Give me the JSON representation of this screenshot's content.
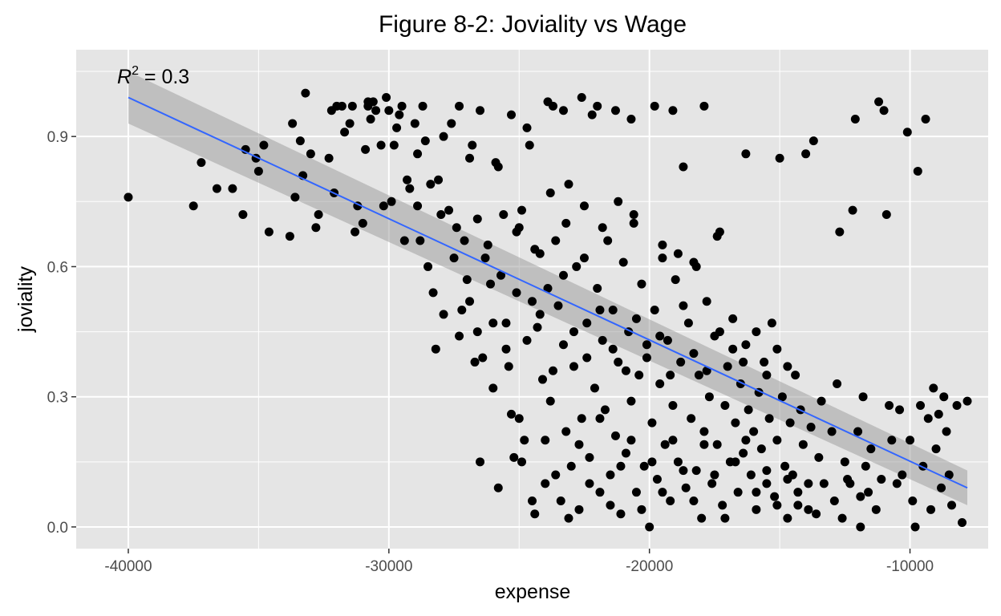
{
  "chart_data": {
    "type": "scatter",
    "title": "Figure 8-2: Joviality vs Wage",
    "xlabel": "expense",
    "ylabel": "joviality",
    "xlim": [
      -42000,
      -7000
    ],
    "ylim": [
      -0.05,
      1.1
    ],
    "x_ticks": [
      -40000,
      -30000,
      -20000,
      -10000
    ],
    "x_tick_labels": [
      "-40000",
      "-30000",
      "-20000",
      "-10000"
    ],
    "y_ticks": [
      0.0,
      0.3,
      0.6,
      0.9
    ],
    "y_tick_labels": [
      "0.0",
      "0.3",
      "0.6",
      "0.9"
    ],
    "grid": true,
    "annotation": {
      "prefix": "R",
      "superscript": "2",
      "text": " = 0.3"
    },
    "trend_line": {
      "x": [
        -40000,
        -7800
      ],
      "y": [
        0.99,
        0.09
      ]
    },
    "confidence_band": {
      "x": [
        -40000,
        -7800
      ],
      "upper": [
        1.05,
        0.13
      ],
      "lower": [
        0.93,
        0.05
      ]
    },
    "colors": {
      "panel": "#e5e5e5",
      "grid": "#ffffff",
      "points": "#000000",
      "line": "#3366ff",
      "band": "#999999"
    },
    "points": [
      [
        -40000,
        0.76
      ],
      [
        -37500,
        0.74
      ],
      [
        -37200,
        0.84
      ],
      [
        -36600,
        0.78
      ],
      [
        -36000,
        0.78
      ],
      [
        -35600,
        0.72
      ],
      [
        -35500,
        0.87
      ],
      [
        -35100,
        0.85
      ],
      [
        -35000,
        0.82
      ],
      [
        -34800,
        0.88
      ],
      [
        -34600,
        0.68
      ],
      [
        -33800,
        0.67
      ],
      [
        -33700,
        0.93
      ],
      [
        -33600,
        0.76
      ],
      [
        -33400,
        0.89
      ],
      [
        -33300,
        0.81
      ],
      [
        -33200,
        1.0
      ],
      [
        -33000,
        0.86
      ],
      [
        -32800,
        0.69
      ],
      [
        -32700,
        0.72
      ],
      [
        -32300,
        0.85
      ],
      [
        -32200,
        0.96
      ],
      [
        -32100,
        0.77
      ],
      [
        -32000,
        0.97
      ],
      [
        -31800,
        0.97
      ],
      [
        -31700,
        0.91
      ],
      [
        -31500,
        0.93
      ],
      [
        -31400,
        0.97
      ],
      [
        -31300,
        0.68
      ],
      [
        -31200,
        0.74
      ],
      [
        -31000,
        0.7
      ],
      [
        -30900,
        0.87
      ],
      [
        -30800,
        0.97
      ],
      [
        -30700,
        0.94
      ],
      [
        -30600,
        0.98
      ],
      [
        -30500,
        0.96
      ],
      [
        -30300,
        0.88
      ],
      [
        -30200,
        0.74
      ],
      [
        -30100,
        0.99
      ],
      [
        -30000,
        0.96
      ],
      [
        -29900,
        0.75
      ],
      [
        -29800,
        0.88
      ],
      [
        -29700,
        0.92
      ],
      [
        -29500,
        0.97
      ],
      [
        -29400,
        0.66
      ],
      [
        -29200,
        0.78
      ],
      [
        -29000,
        0.93
      ],
      [
        -28900,
        0.86
      ],
      [
        -28800,
        0.66
      ],
      [
        -28700,
        0.97
      ],
      [
        -28500,
        0.6
      ],
      [
        -28400,
        0.79
      ],
      [
        -28300,
        0.54
      ],
      [
        -28200,
        0.41
      ],
      [
        -28100,
        0.8
      ],
      [
        -27900,
        0.9
      ],
      [
        -27700,
        0.73
      ],
      [
        -27500,
        0.62
      ],
      [
        -27300,
        0.97
      ],
      [
        -27200,
        0.5
      ],
      [
        -27000,
        0.57
      ],
      [
        -26900,
        0.85
      ],
      [
        -26700,
        0.38
      ],
      [
        -26600,
        0.45
      ],
      [
        -26500,
        0.96
      ],
      [
        -26300,
        0.62
      ],
      [
        -26100,
        0.56
      ],
      [
        -26000,
        0.32
      ],
      [
        -25800,
        0.83
      ],
      [
        -25700,
        0.58
      ],
      [
        -25500,
        0.47
      ],
      [
        -25400,
        0.37
      ],
      [
        -25200,
        0.16
      ],
      [
        -25100,
        0.68
      ],
      [
        -25000,
        0.25
      ],
      [
        -24900,
        0.73
      ],
      [
        -24800,
        0.2
      ],
      [
        -24600,
        0.88
      ],
      [
        -24500,
        0.52
      ],
      [
        -24400,
        0.03
      ],
      [
        -24300,
        0.46
      ],
      [
        -24200,
        0.63
      ],
      [
        -24100,
        0.34
      ],
      [
        -24000,
        0.1
      ],
      [
        -23900,
        0.55
      ],
      [
        -23800,
        0.29
      ],
      [
        -23700,
        0.97
      ],
      [
        -23600,
        0.66
      ],
      [
        -23500,
        0.51
      ],
      [
        -23400,
        0.06
      ],
      [
        -23300,
        0.42
      ],
      [
        -23200,
        0.22
      ],
      [
        -23100,
        0.79
      ],
      [
        -23000,
        0.14
      ],
      [
        -22900,
        0.37
      ],
      [
        -22800,
        0.6
      ],
      [
        -22700,
        0.04
      ],
      [
        -22600,
        0.25
      ],
      [
        -22500,
        0.74
      ],
      [
        -22400,
        0.47
      ],
      [
        -22300,
        0.16
      ],
      [
        -22200,
        0.95
      ],
      [
        -22100,
        0.32
      ],
      [
        -22000,
        0.55
      ],
      [
        -21900,
        0.08
      ],
      [
        -21800,
        0.43
      ],
      [
        -21700,
        0.27
      ],
      [
        -21600,
        0.66
      ],
      [
        -21500,
        0.12
      ],
      [
        -21400,
        0.5
      ],
      [
        -21300,
        0.21
      ],
      [
        -21200,
        0.38
      ],
      [
        -21100,
        0.03
      ],
      [
        -21000,
        0.61
      ],
      [
        -20900,
        0.17
      ],
      [
        -20800,
        0.45
      ],
      [
        -20700,
        0.29
      ],
      [
        -20600,
        0.72
      ],
      [
        -20500,
        0.08
      ],
      [
        -20400,
        0.35
      ],
      [
        -20300,
        0.56
      ],
      [
        -20200,
        0.14
      ],
      [
        -20100,
        0.42
      ],
      [
        -20000,
        0.0
      ],
      [
        -19900,
        0.24
      ],
      [
        -19800,
        0.5
      ],
      [
        -19700,
        0.11
      ],
      [
        -19600,
        0.33
      ],
      [
        -19500,
        0.62
      ],
      [
        -19400,
        0.19
      ],
      [
        -19300,
        0.43
      ],
      [
        -19200,
        0.06
      ],
      [
        -19100,
        0.28
      ],
      [
        -19000,
        0.57
      ],
      [
        -18900,
        0.15
      ],
      [
        -18800,
        0.38
      ],
      [
        -18700,
        0.83
      ],
      [
        -18600,
        0.09
      ],
      [
        -18500,
        0.47
      ],
      [
        -18400,
        0.25
      ],
      [
        -18300,
        0.61
      ],
      [
        -18200,
        0.13
      ],
      [
        -18100,
        0.35
      ],
      [
        -18000,
        0.02
      ],
      [
        -17900,
        0.22
      ],
      [
        -17800,
        0.52
      ],
      [
        -17700,
        0.3
      ],
      [
        -17600,
        0.1
      ],
      [
        -17500,
        0.44
      ],
      [
        -17400,
        0.19
      ],
      [
        -17300,
        0.68
      ],
      [
        -17200,
        0.05
      ],
      [
        -17100,
        0.28
      ],
      [
        -17000,
        0.37
      ],
      [
        -16900,
        0.15
      ],
      [
        -16800,
        0.48
      ],
      [
        -16700,
        0.24
      ],
      [
        -16600,
        0.08
      ],
      [
        -16500,
        0.33
      ],
      [
        -16400,
        0.17
      ],
      [
        -16300,
        0.42
      ],
      [
        -16200,
        0.27
      ],
      [
        -16100,
        0.12
      ],
      [
        -16000,
        0.22
      ],
      [
        -15900,
        0.04
      ],
      [
        -15800,
        0.31
      ],
      [
        -15700,
        0.18
      ],
      [
        -15600,
        0.38
      ],
      [
        -15500,
        0.1
      ],
      [
        -15400,
        0.25
      ],
      [
        -15300,
        0.47
      ],
      [
        -15200,
        0.07
      ],
      [
        -15100,
        0.2
      ],
      [
        -15000,
        0.85
      ],
      [
        -14900,
        0.3
      ],
      [
        -14800,
        0.14
      ],
      [
        -14700,
        0.02
      ],
      [
        -14600,
        0.24
      ],
      [
        -14500,
        0.12
      ],
      [
        -14400,
        0.35
      ],
      [
        -14300,
        0.05
      ],
      [
        -14200,
        0.27
      ],
      [
        -14100,
        0.19
      ],
      [
        -14000,
        0.86
      ],
      [
        -13900,
        0.1
      ],
      [
        -13800,
        0.23
      ],
      [
        -13700,
        0.89
      ],
      [
        -13600,
        0.03
      ],
      [
        -13500,
        0.16
      ],
      [
        -13400,
        0.29
      ],
      [
        -13000,
        0.22
      ],
      [
        -12800,
        0.33
      ],
      [
        -12700,
        0.68
      ],
      [
        -12600,
        0.02
      ],
      [
        -12500,
        0.15
      ],
      [
        -12300,
        0.1
      ],
      [
        -12200,
        0.73
      ],
      [
        -12100,
        0.94
      ],
      [
        -12000,
        0.22
      ],
      [
        -11900,
        0.0
      ],
      [
        -11800,
        0.3
      ],
      [
        -11700,
        0.14
      ],
      [
        -11600,
        0.08
      ],
      [
        -11500,
        0.18
      ],
      [
        -11300,
        0.04
      ],
      [
        -11200,
        0.98
      ],
      [
        -11100,
        0.11
      ],
      [
        -11000,
        0.96
      ],
      [
        -10900,
        0.72
      ],
      [
        -10800,
        0.28
      ],
      [
        -10700,
        0.2
      ],
      [
        -10500,
        0.1
      ],
      [
        -10400,
        0.27
      ],
      [
        -10300,
        0.12
      ],
      [
        -10100,
        0.91
      ],
      [
        -10000,
        0.2
      ],
      [
        -9900,
        0.06
      ],
      [
        -9800,
        0.0
      ],
      [
        -9700,
        0.82
      ],
      [
        -9600,
        0.28
      ],
      [
        -9500,
        0.14
      ],
      [
        -9400,
        0.94
      ],
      [
        -9300,
        0.25
      ],
      [
        -9200,
        0.04
      ],
      [
        -9100,
        0.32
      ],
      [
        -9000,
        0.18
      ],
      [
        -8900,
        0.26
      ],
      [
        -8800,
        0.09
      ],
      [
        -8700,
        0.3
      ],
      [
        -8600,
        0.22
      ],
      [
        -8500,
        0.12
      ],
      [
        -8400,
        0.05
      ],
      [
        -8200,
        0.28
      ],
      [
        -8000,
        0.01
      ],
      [
        -7800,
        0.29
      ],
      [
        -30800,
        0.98
      ],
      [
        -29600,
        0.95
      ],
      [
        -28600,
        0.89
      ],
      [
        -27600,
        0.93
      ],
      [
        -26800,
        0.88
      ],
      [
        -25900,
        0.84
      ],
      [
        -25300,
        0.95
      ],
      [
        -24700,
        0.92
      ],
      [
        -23900,
        0.98
      ],
      [
        -23300,
        0.96
      ],
      [
        -22600,
        0.99
      ],
      [
        -22000,
        0.97
      ],
      [
        -21300,
        0.96
      ],
      [
        -20700,
        0.94
      ],
      [
        -19800,
        0.97
      ],
      [
        -19100,
        0.96
      ],
      [
        -17900,
        0.97
      ],
      [
        -16300,
        0.86
      ],
      [
        -29300,
        0.8
      ],
      [
        -28900,
        0.74
      ],
      [
        -28000,
        0.72
      ],
      [
        -27400,
        0.69
      ],
      [
        -27100,
        0.66
      ],
      [
        -26600,
        0.71
      ],
      [
        -26200,
        0.65
      ],
      [
        -25600,
        0.72
      ],
      [
        -25000,
        0.69
      ],
      [
        -24400,
        0.64
      ],
      [
        -23800,
        0.77
      ],
      [
        -23200,
        0.7
      ],
      [
        -22500,
        0.62
      ],
      [
        -21800,
        0.69
      ],
      [
        -21200,
        0.75
      ],
      [
        -20600,
        0.7
      ],
      [
        -19500,
        0.65
      ],
      [
        -18900,
        0.63
      ],
      [
        -18200,
        0.6
      ],
      [
        -17400,
        0.67
      ],
      [
        -27900,
        0.49
      ],
      [
        -27300,
        0.44
      ],
      [
        -26900,
        0.52
      ],
      [
        -26400,
        0.39
      ],
      [
        -26000,
        0.47
      ],
      [
        -25500,
        0.41
      ],
      [
        -25100,
        0.54
      ],
      [
        -24700,
        0.43
      ],
      [
        -24200,
        0.49
      ],
      [
        -23700,
        0.36
      ],
      [
        -23300,
        0.58
      ],
      [
        -22900,
        0.45
      ],
      [
        -22400,
        0.39
      ],
      [
        -21900,
        0.5
      ],
      [
        -21400,
        0.41
      ],
      [
        -20900,
        0.36
      ],
      [
        -20500,
        0.48
      ],
      [
        -20100,
        0.39
      ],
      [
        -19600,
        0.44
      ],
      [
        -19200,
        0.35
      ],
      [
        -18700,
        0.51
      ],
      [
        -18300,
        0.4
      ],
      [
        -17800,
        0.36
      ],
      [
        -17300,
        0.45
      ],
      [
        -16800,
        0.41
      ],
      [
        -16400,
        0.38
      ],
      [
        -15900,
        0.45
      ],
      [
        -15500,
        0.35
      ],
      [
        -15100,
        0.41
      ],
      [
        -14700,
        0.37
      ],
      [
        -26500,
        0.15
      ],
      [
        -25800,
        0.09
      ],
      [
        -25300,
        0.26
      ],
      [
        -24900,
        0.15
      ],
      [
        -24500,
        0.06
      ],
      [
        -24000,
        0.2
      ],
      [
        -23600,
        0.12
      ],
      [
        -23100,
        0.02
      ],
      [
        -22700,
        0.19
      ],
      [
        -22300,
        0.1
      ],
      [
        -21900,
        0.25
      ],
      [
        -21500,
        0.05
      ],
      [
        -21100,
        0.14
      ],
      [
        -20700,
        0.2
      ],
      [
        -20300,
        0.04
      ],
      [
        -19900,
        0.15
      ],
      [
        -19500,
        0.08
      ],
      [
        -19100,
        0.2
      ],
      [
        -18700,
        0.13
      ],
      [
        -18300,
        0.06
      ],
      [
        -17900,
        0.19
      ],
      [
        -17500,
        0.12
      ],
      [
        -17100,
        0.02
      ],
      [
        -16700,
        0.15
      ],
      [
        -16300,
        0.2
      ],
      [
        -15900,
        0.08
      ],
      [
        -15500,
        0.13
      ],
      [
        -15100,
        0.05
      ],
      [
        -14700,
        0.11
      ],
      [
        -14300,
        0.08
      ],
      [
        -13900,
        0.04
      ],
      [
        -13300,
        0.1
      ],
      [
        -12900,
        0.06
      ],
      [
        -12400,
        0.11
      ],
      [
        -11900,
        0.07
      ]
    ]
  }
}
